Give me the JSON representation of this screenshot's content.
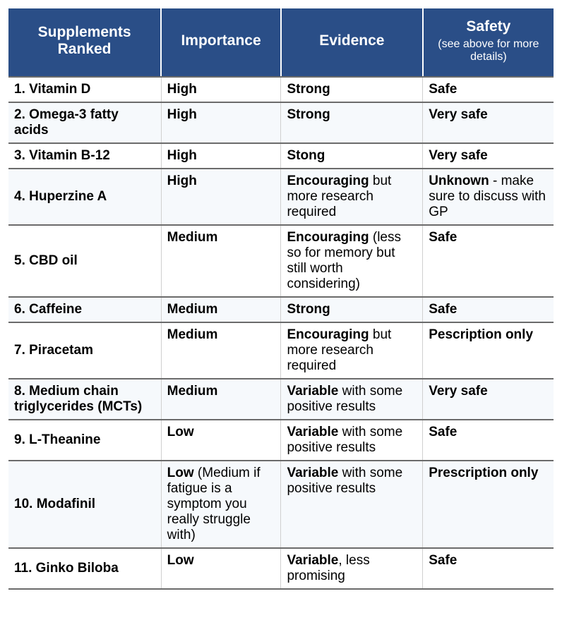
{
  "style": {
    "header_bg": "#2a4e87",
    "header_fg": "#ffffff",
    "band_bg": "#f6f9fc",
    "col_border": "#d0d0d0",
    "header_title_fontsize": 21,
    "header_sub_fontsize": 16,
    "body_fontsize": 19,
    "col_widths_pct": [
      28,
      22,
      26,
      24
    ]
  },
  "headers": {
    "c0_line1": "Supplements",
    "c0_line2": "Ranked",
    "c1": "Importance",
    "c2": "Evidence",
    "c3_line1": "Safety",
    "c3_sub": "(see above for more details)"
  },
  "rows": [
    {
      "name": "1. Vitamin D",
      "importance_bold": "High",
      "importance_rest": "",
      "evidence_bold": "Strong",
      "evidence_rest": "",
      "safety_bold": "Safe",
      "safety_rest": ""
    },
    {
      "name": "2. Omega-3 fatty acids",
      "importance_bold": "High",
      "importance_rest": "",
      "evidence_bold": "Strong",
      "evidence_rest": "",
      "safety_bold": "Very safe",
      "safety_rest": ""
    },
    {
      "name": "3. Vitamin B-12",
      "importance_bold": "High",
      "importance_rest": "",
      "evidence_bold": "Stong",
      "evidence_rest": "",
      "safety_bold": "Very safe",
      "safety_rest": ""
    },
    {
      "name": "4. Huperzine A",
      "importance_bold": "High",
      "importance_rest": "",
      "evidence_bold": "Encouraging",
      "evidence_rest": " but more research required",
      "safety_bold": "Unknown",
      "safety_rest": " - make sure to discuss with GP"
    },
    {
      "name": "5. CBD oil",
      "importance_bold": "Medium",
      "importance_rest": "",
      "evidence_bold": "Encouraging",
      "evidence_rest": " (less so for memory but still worth considering)",
      "safety_bold": "Safe",
      "safety_rest": ""
    },
    {
      "name": "6. Caffeine",
      "importance_bold": "Medium",
      "importance_rest": "",
      "evidence_bold": "Strong",
      "evidence_rest": "",
      "safety_bold": "Safe",
      "safety_rest": ""
    },
    {
      "name": "7. Piracetam",
      "importance_bold": "Medium",
      "importance_rest": "",
      "evidence_bold": "Encouraging",
      "evidence_rest": " but more research required",
      "safety_bold": "Pescription only",
      "safety_rest": ""
    },
    {
      "name": "8. Medium chain triglycerides (MCTs)",
      "importance_bold": "Medium",
      "importance_rest": "",
      "evidence_bold": "Variable",
      "evidence_rest": " with some positive results",
      "safety_bold": "Very safe",
      "safety_rest": ""
    },
    {
      "name": "9. L-Theanine",
      "importance_bold": "Low",
      "importance_rest": "",
      "evidence_bold": "Variable",
      "evidence_rest": " with some positive results",
      "safety_bold": "Safe",
      "safety_rest": ""
    },
    {
      "name": "10. Modafinil",
      "importance_bold": "Low",
      "importance_rest": " (Medium if fatigue is a symptom you really struggle with)",
      "evidence_bold": "Variable",
      "evidence_rest": " with some positive results",
      "safety_bold": "Prescription only",
      "safety_rest": ""
    },
    {
      "name": "11. Ginko Biloba",
      "importance_bold": "Low",
      "importance_rest": "",
      "evidence_bold": "Variable",
      "evidence_rest": ", less promising",
      "safety_bold": "Safe",
      "safety_rest": ""
    }
  ]
}
